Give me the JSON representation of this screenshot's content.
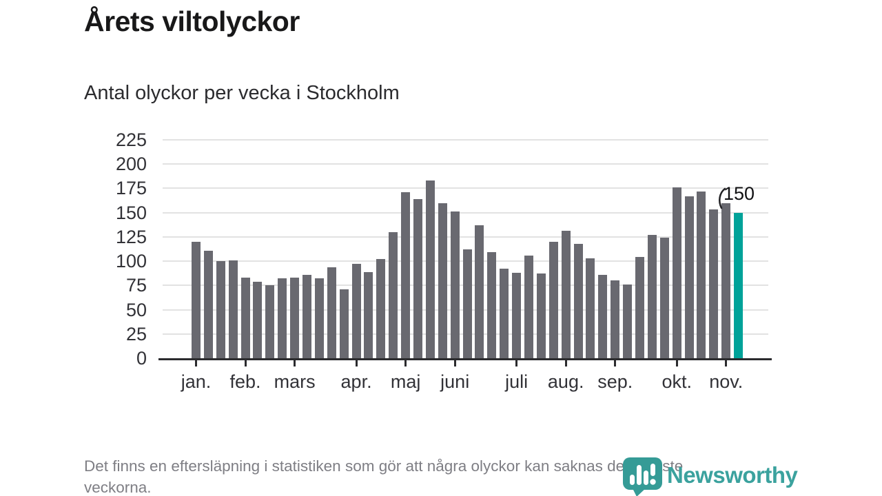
{
  "header": {
    "title": "Årets viltolyckor",
    "subtitle": "Antal olyckor per vecka i Stockholm"
  },
  "chart_data": {
    "type": "bar",
    "title": "Årets viltolyckor",
    "subtitle": "Antal olyckor per vecka i Stockholm",
    "x_unit": "vecka",
    "values": [
      120,
      111,
      100,
      101,
      83,
      79,
      75,
      82,
      83,
      86,
      82,
      94,
      71,
      97,
      89,
      102,
      130,
      171,
      164,
      183,
      160,
      151,
      112,
      137,
      109,
      92,
      88,
      106,
      87,
      120,
      131,
      118,
      103,
      86,
      80,
      76,
      104,
      127,
      124,
      176,
      167,
      172,
      153,
      160,
      150
    ],
    "month_ticks": [
      {
        "label": "jan.",
        "week_index": 0
      },
      {
        "label": "feb.",
        "week_index": 4
      },
      {
        "label": "mars",
        "week_index": 8
      },
      {
        "label": "apr.",
        "week_index": 13
      },
      {
        "label": "maj",
        "week_index": 17
      },
      {
        "label": "juni",
        "week_index": 21
      },
      {
        "label": "juli",
        "week_index": 26
      },
      {
        "label": "aug.",
        "week_index": 30
      },
      {
        "label": "sep.",
        "week_index": 34
      },
      {
        "label": "okt.",
        "week_index": 39
      },
      {
        "label": "nov.",
        "week_index": 43
      }
    ],
    "yticks": [
      0,
      25,
      50,
      75,
      100,
      125,
      150,
      175,
      200,
      225
    ],
    "ylim": [
      0,
      225
    ],
    "grid": true,
    "legend": "none",
    "highlight_last_bar": true,
    "annotation": {
      "text": "150",
      "target": "last-bar"
    },
    "colors": {
      "bar": "#696970",
      "highlight": "#00A299",
      "grid": "#e2e2e2",
      "axis": "#2b2b2e"
    }
  },
  "footer": {
    "note": "Det finns en eftersläpning i statistiken som gör att några olyckor kan saknas de senaste veckorna."
  },
  "logo": {
    "text": "Newsworthy",
    "icon": "newsworthy-chart-bubble-icon",
    "color": "#3BA29E"
  }
}
